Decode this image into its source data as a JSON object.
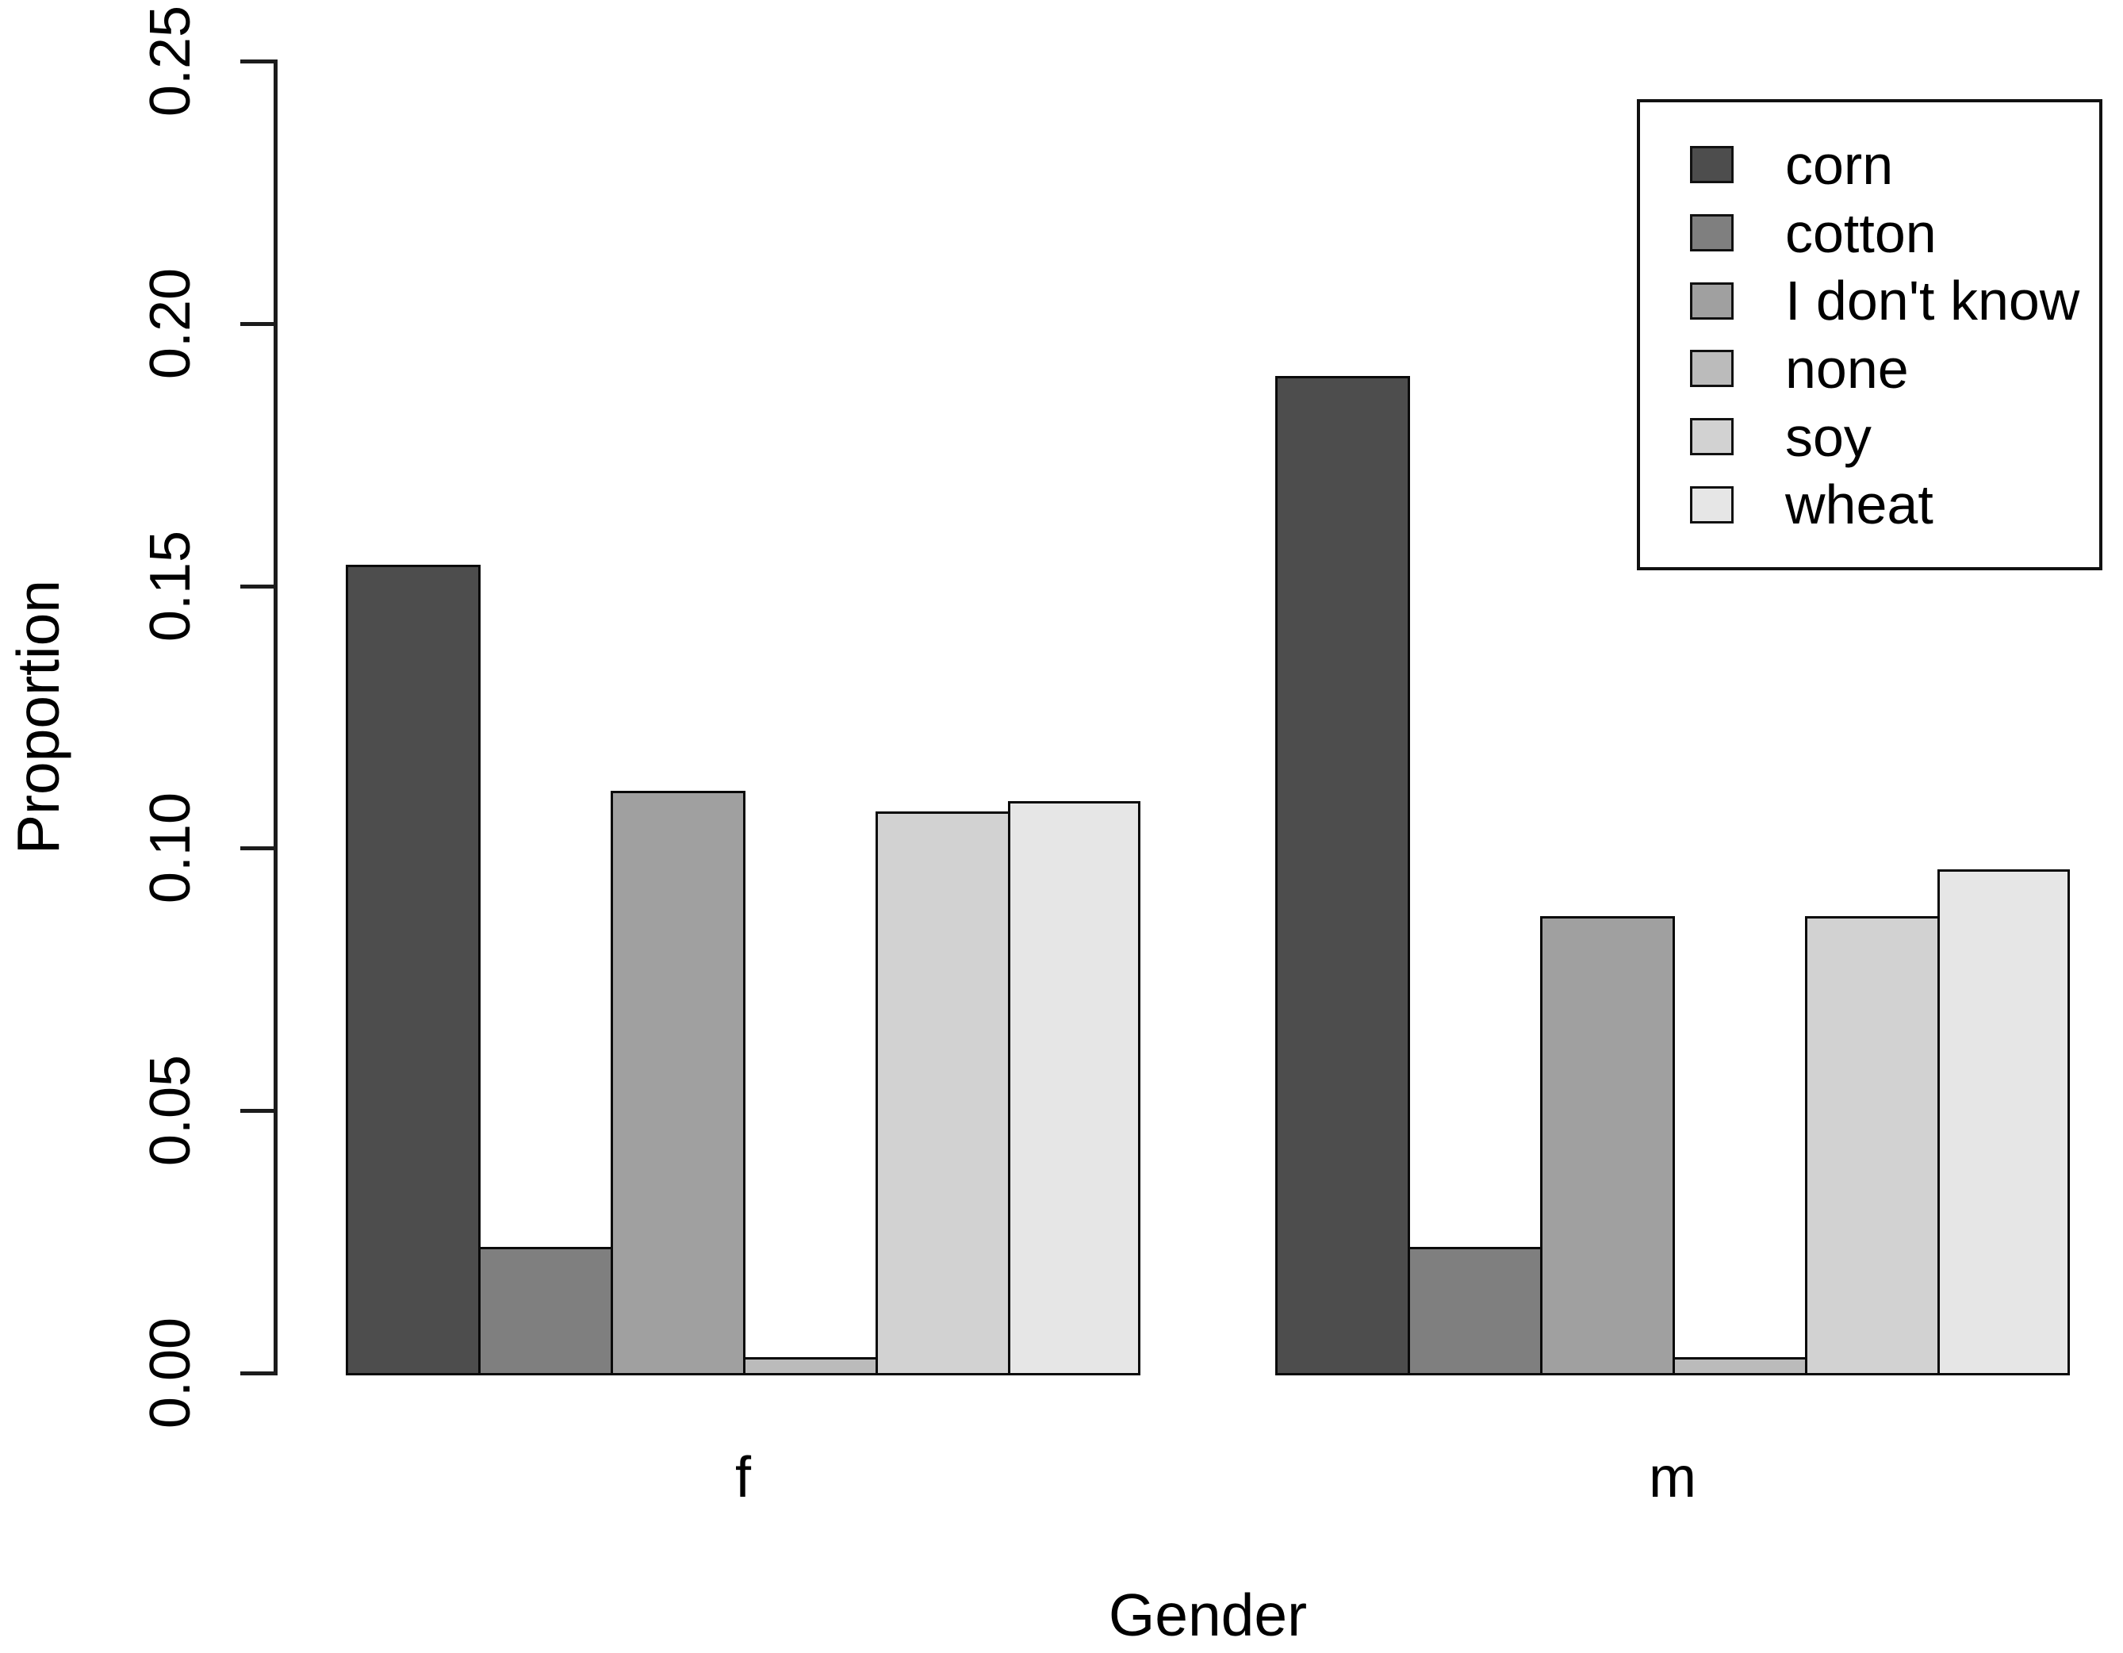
{
  "chart_data": {
    "type": "bar",
    "title": "",
    "xlabel": "Gender",
    "ylabel": "Proportion",
    "categories": [
      "f",
      "m"
    ],
    "series": [
      {
        "name": "corn",
        "color": "#4D4D4D",
        "values": [
          0.154,
          0.19
        ]
      },
      {
        "name": "cotton",
        "color": "#7F7F7F",
        "values": [
          0.024,
          0.024
        ]
      },
      {
        "name": "I don't know",
        "color": "#A0A0A0",
        "values": [
          0.111,
          0.087
        ]
      },
      {
        "name": "none",
        "color": "#BBBBBB",
        "values": [
          0.003,
          0.003
        ]
      },
      {
        "name": "soy",
        "color": "#D2D2D2",
        "values": [
          0.107,
          0.087
        ]
      },
      {
        "name": "wheat",
        "color": "#E6E6E6",
        "values": [
          0.109,
          0.096
        ]
      }
    ],
    "y_ticks": [
      {
        "value": 0.0,
        "label": "0.00"
      },
      {
        "value": 0.05,
        "label": "0.05"
      },
      {
        "value": 0.1,
        "label": "0.10"
      },
      {
        "value": 0.15,
        "label": "0.15"
      },
      {
        "value": 0.2,
        "label": "0.20"
      },
      {
        "value": 0.25,
        "label": "0.25"
      }
    ],
    "ylim": [
      0,
      0.25
    ],
    "grid": false,
    "legend": {
      "position": "top-right",
      "entries": [
        "corn",
        "cotton",
        "I don't know",
        "none",
        "soy",
        "wheat"
      ]
    },
    "bar_border_color": "#0a0a0a",
    "axis_color": "#1c1c1c",
    "background_color": "#FFFFFF"
  }
}
